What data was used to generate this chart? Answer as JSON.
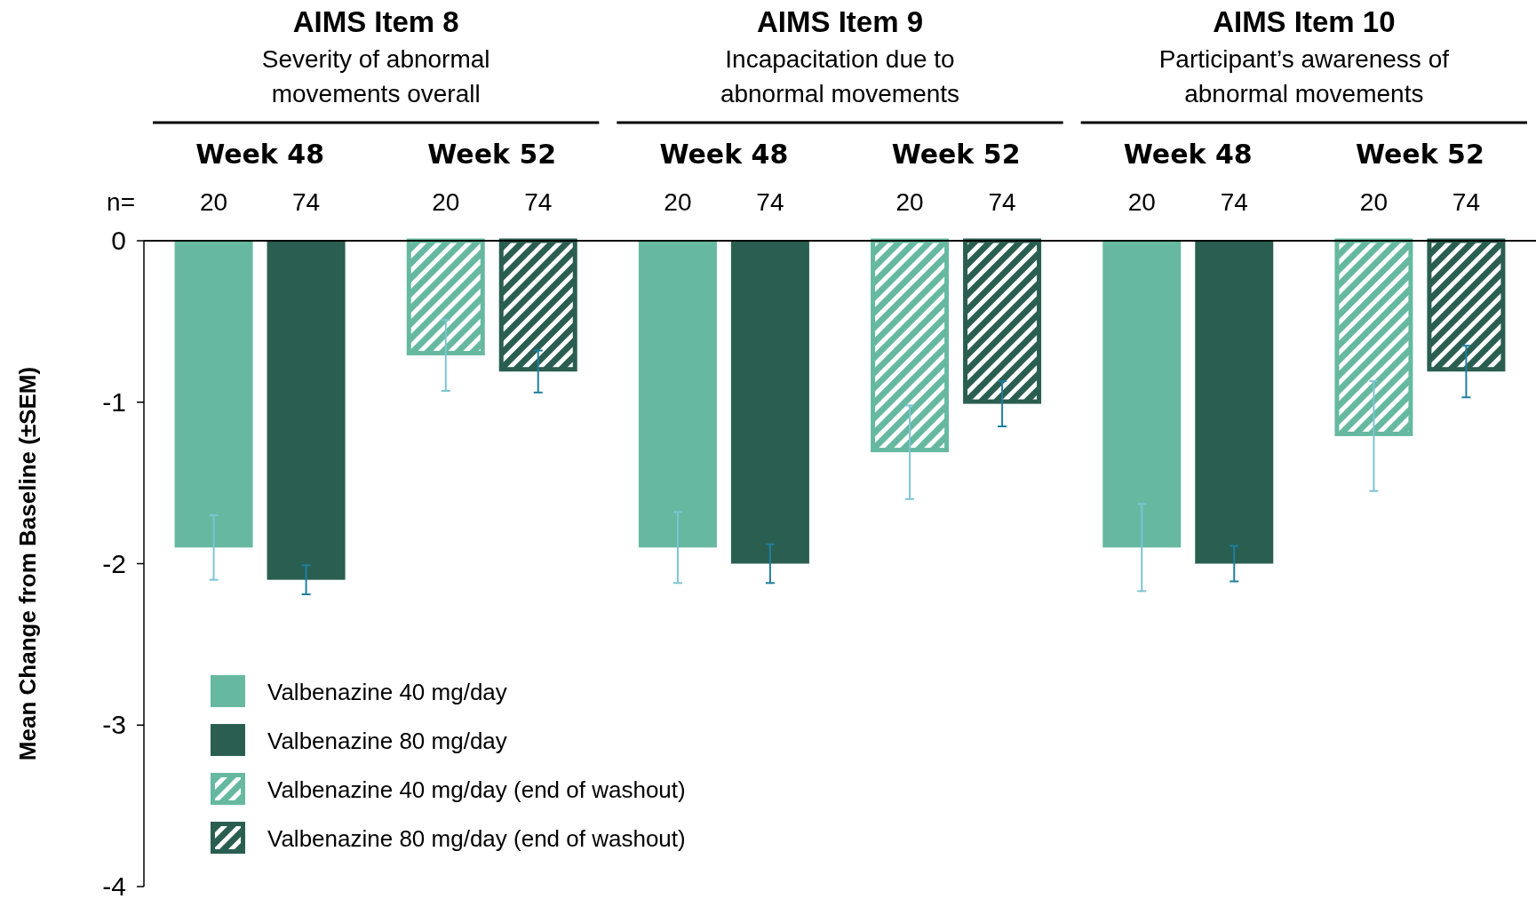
{
  "chart_data": {
    "type": "bar",
    "ylabel": "Mean Change from Baseline (±SEM)",
    "categories": [
      "Week 48",
      "Week 52",
      "Week 48",
      "Week 52",
      "Week 48",
      "Week 52"
    ],
    "series": [
      {
        "name": "Valbenazine 40 mg/day",
        "color": "#66b9a0",
        "values": [
          -1.9,
          null,
          -1.9,
          null,
          -1.9,
          null
        ],
        "errors": [
          0.2,
          null,
          0.22,
          null,
          0.27,
          null
        ]
      },
      {
        "name": "Valbenazine 80 mg/day",
        "color": "#2a5e50",
        "values": [
          -2.1,
          null,
          -2.0,
          null,
          -2.0,
          null
        ],
        "errors": [
          0.09,
          null,
          0.12,
          null,
          0.11,
          null
        ]
      },
      {
        "name": "Valbenazine 40 mg/day (end of washout)",
        "color": "#66b9a0",
        "values": [
          null,
          -0.71,
          null,
          -1.31,
          null,
          -1.21
        ],
        "errors": [
          null,
          0.22,
          null,
          0.29,
          null,
          0.34
        ]
      },
      {
        "name": "Valbenazine 80 mg/day (end of washout)",
        "color": "#2a5e50",
        "values": [
          null,
          -0.81,
          null,
          -1.01,
          null,
          -0.81
        ],
        "errors": [
          null,
          0.13,
          null,
          0.14,
          null,
          0.16
        ]
      }
    ],
    "annotations": [
      "AIMS Item 8",
      "Severity of abnormal",
      "movements overall",
      "AIMS Item 9",
      "Incapacitation due to",
      "abnormal movements",
      "AIMS Item 10",
      "Participant’s awareness of",
      "abnormal movements",
      "n=",
      "20",
      "74",
      "20",
      "74",
      "20",
      "74",
      "20",
      "74",
      "20",
      "74",
      "20",
      "74"
    ],
    "ylim": [
      -4,
      0
    ],
    "yticks": [
      0,
      -1,
      -2,
      -3,
      -4
    ],
    "legend": "bottom left"
  }
}
